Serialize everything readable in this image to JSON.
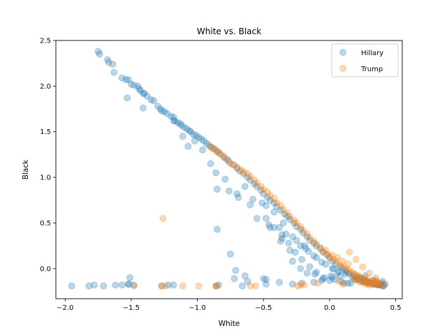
{
  "chart_data": {
    "type": "scatter",
    "title": "White vs. Black",
    "xlabel": "White",
    "ylabel": "Black",
    "xlim": [
      -2.07,
      0.55
    ],
    "ylim": [
      -0.33,
      2.5
    ],
    "x_ticks": [
      -2.0,
      -1.5,
      -1.0,
      -0.5,
      0.0,
      0.5
    ],
    "x_tick_labels": [
      "−2.0",
      "−1.5",
      "−1.0",
      "−0.5",
      "0.0",
      "0.5"
    ],
    "y_ticks": [
      0.0,
      0.5,
      1.0,
      1.5,
      2.0,
      2.5
    ],
    "y_tick_labels": [
      "0.0",
      "0.5",
      "1.0",
      "1.5",
      "2.0",
      "2.5"
    ],
    "grid": false,
    "legend_position": "top-right",
    "series": [
      {
        "name": "Hillary",
        "color": "#1f77b4",
        "alpha": 0.3,
        "x": [
          -1.75,
          -1.74,
          -1.68,
          -1.67,
          -1.64,
          -1.63,
          -1.57,
          -1.54,
          -1.52,
          -1.5,
          -1.48,
          -1.45,
          -1.44,
          -1.43,
          -1.41,
          -1.4,
          -1.38,
          -1.35,
          -1.33,
          -1.3,
          -1.28,
          -1.25,
          -1.23,
          -1.2,
          -1.18,
          -1.17,
          -1.15,
          -1.13,
          -1.12,
          -1.1,
          -1.08,
          -1.06,
          -1.05,
          -1.03,
          -1.01,
          -0.99,
          -0.97,
          -0.95,
          -0.93,
          -0.91,
          -0.89,
          -0.87,
          -0.85,
          -0.83,
          -0.8,
          -0.78,
          -0.76,
          -0.73,
          -0.7,
          -0.68,
          -0.65,
          -0.62,
          -0.6,
          -0.57,
          -0.55,
          -0.52,
          -0.5,
          -0.47,
          -0.45,
          -0.42,
          -0.4,
          -0.37,
          -0.34,
          -0.32,
          -0.3,
          -0.27,
          -0.25,
          -0.22,
          -0.2,
          -0.17,
          -0.15,
          -0.12,
          -0.1,
          -0.07,
          -0.05,
          -0.02,
          0.0,
          0.02,
          0.05,
          0.08,
          0.1,
          0.12,
          0.15,
          0.18,
          0.2,
          0.22,
          0.24,
          0.26,
          0.28,
          0.3,
          0.32,
          0.34,
          0.36,
          0.38,
          0.4,
          0.41,
          -1.53,
          -1.41,
          -1.27,
          -1.18,
          -1.11,
          -1.07,
          -1.02,
          -0.96,
          -0.9,
          -0.86,
          -0.79,
          -0.7,
          -0.64,
          -0.58,
          -0.48,
          -0.42,
          -0.38,
          -0.33,
          -0.25,
          -0.18,
          -0.12,
          -0.06,
          0.02,
          0.06,
          -0.85,
          -0.76,
          -0.69,
          -0.6,
          -0.55,
          -0.46,
          -0.36,
          -0.31,
          -0.26,
          -0.21,
          -0.15,
          -0.1,
          -0.04,
          0.01,
          0.09,
          0.14,
          -0.51,
          -0.48,
          -0.42,
          -0.35,
          -0.28,
          -0.22,
          -0.16,
          -0.1,
          -0.03,
          0.03,
          0.07,
          0.12,
          0.17,
          0.21,
          0.25,
          0.29,
          0.33,
          0.37,
          -0.85,
          -0.75,
          -0.71,
          -0.64,
          -0.5,
          -0.45,
          -0.36,
          -0.28,
          -0.22,
          -0.17,
          -0.11,
          -0.05,
          0.0,
          0.04,
          0.11,
          0.16,
          -1.95,
          -1.82,
          -1.78,
          -1.71,
          -1.62,
          -1.57,
          -1.52,
          -1.48,
          -1.27,
          -1.22,
          -1.18,
          -0.86,
          -0.84,
          -0.66,
          -0.48,
          -0.38,
          -0.28,
          -0.21,
          -0.12,
          -0.06,
          0.02,
          0.08,
          0.13,
          -1.51,
          -1.52,
          -0.72,
          -0.62,
          -0.48,
          -0.37,
          -0.3,
          -0.19,
          0.19,
          0.23,
          0.27,
          0.31,
          0.35,
          0.39,
          0.42,
          0.26,
          0.29,
          0.33,
          0.36,
          0.4
        ],
        "y": [
          2.38,
          2.35,
          2.29,
          2.26,
          2.24,
          2.15,
          2.09,
          2.07,
          2.07,
          2.02,
          2.01,
          2.0,
          1.97,
          1.95,
          1.92,
          1.92,
          1.89,
          1.85,
          1.84,
          1.78,
          1.75,
          1.72,
          1.7,
          1.67,
          1.66,
          1.62,
          1.6,
          1.59,
          1.57,
          1.55,
          1.53,
          1.51,
          1.5,
          1.47,
          1.46,
          1.44,
          1.42,
          1.4,
          1.37,
          1.35,
          1.33,
          1.31,
          1.28,
          1.26,
          1.22,
          1.2,
          1.17,
          1.14,
          1.1,
          1.07,
          1.04,
          1.0,
          0.97,
          0.93,
          0.9,
          0.86,
          0.82,
          0.78,
          0.75,
          0.72,
          0.68,
          0.64,
          0.6,
          0.57,
          0.54,
          0.5,
          0.46,
          0.43,
          0.39,
          0.35,
          0.31,
          0.28,
          0.25,
          0.22,
          0.18,
          0.15,
          0.12,
          0.08,
          0.05,
          0.02,
          0.0,
          -0.02,
          -0.05,
          -0.07,
          -0.09,
          -0.11,
          -0.13,
          -0.14,
          -0.15,
          -0.16,
          -0.17,
          -0.17,
          -0.18,
          -0.18,
          -0.19,
          -0.19,
          1.87,
          1.76,
          1.73,
          1.62,
          1.45,
          1.34,
          1.4,
          1.3,
          1.15,
          1.05,
          0.98,
          0.82,
          0.9,
          0.76,
          0.69,
          0.62,
          0.45,
          0.38,
          0.31,
          0.22,
          0.14,
          0.07,
          0.0,
          -0.05,
          0.87,
          0.85,
          0.78,
          0.7,
          0.55,
          0.48,
          0.37,
          0.28,
          0.18,
          0.1,
          0.02,
          -0.04,
          -0.1,
          -0.08,
          -0.14,
          -0.16,
          0.72,
          0.55,
          0.45,
          0.5,
          0.35,
          0.25,
          0.19,
          0.12,
          0.05,
          0.0,
          -0.03,
          -0.06,
          -0.09,
          -0.12,
          -0.14,
          -0.15,
          -0.17,
          -0.18,
          0.43,
          0.16,
          -0.02,
          -0.08,
          -0.11,
          0.45,
          0.33,
          0.08,
          0.0,
          -0.05,
          -0.06,
          -0.11,
          -0.13,
          -0.12,
          -0.16,
          -0.16,
          -0.19,
          -0.19,
          -0.18,
          -0.19,
          -0.18,
          -0.18,
          -0.17,
          -0.18,
          -0.19,
          -0.18,
          -0.18,
          -0.19,
          -0.18,
          -0.19,
          -0.17,
          -0.15,
          -0.17,
          -0.16,
          -0.15,
          -0.13,
          -0.1,
          -0.08,
          -0.04,
          -0.1,
          -0.17,
          -0.11,
          -0.14,
          -0.12,
          0.3,
          0.2,
          0.25,
          -0.12,
          -0.1,
          -0.08,
          -0.15,
          -0.13,
          -0.16,
          -0.17,
          -0.11,
          -0.15,
          -0.13,
          -0.16,
          -0.14
        ]
      },
      {
        "name": "Trump",
        "color": "#ff7f0e",
        "alpha": 0.3,
        "x": [
          -0.9,
          -0.88,
          -0.86,
          -0.84,
          -0.82,
          -0.8,
          -0.77,
          -0.75,
          -0.72,
          -0.7,
          -0.67,
          -0.65,
          -0.62,
          -0.6,
          -0.57,
          -0.55,
          -0.52,
          -0.5,
          -0.47,
          -0.45,
          -0.42,
          -0.4,
          -0.37,
          -0.35,
          -0.32,
          -0.3,
          -0.27,
          -0.25,
          -0.22,
          -0.2,
          -0.17,
          -0.15,
          -0.12,
          -0.1,
          -0.07,
          -0.05,
          -0.02,
          0.0,
          0.03,
          0.05,
          0.08,
          0.1,
          0.13,
          0.15,
          0.17,
          0.19,
          0.21,
          0.23,
          0.25,
          0.27,
          0.29,
          0.31,
          0.33,
          0.35,
          0.37,
          0.39,
          0.41,
          0.18,
          0.2,
          0.22,
          0.24,
          0.26,
          0.28,
          0.3,
          0.32,
          0.34,
          0.36,
          0.15,
          0.2,
          0.25,
          0.3,
          0.35,
          0.22,
          0.27,
          0.31,
          0.36,
          -0.03,
          0.02,
          0.06,
          0.1,
          0.14,
          -1.26,
          -1.48,
          -1.27,
          -1.24,
          -1.11,
          -0.99,
          -0.86,
          -0.85,
          -0.6,
          -0.56,
          -0.24,
          -0.22,
          -0.19,
          -0.09,
          0.07,
          0.1
        ],
        "y": [
          1.33,
          1.31,
          1.3,
          1.28,
          1.25,
          1.23,
          1.19,
          1.15,
          1.13,
          1.11,
          1.08,
          1.06,
          1.04,
          1.01,
          0.97,
          0.94,
          0.9,
          0.87,
          0.84,
          0.8,
          0.77,
          0.72,
          0.69,
          0.65,
          0.61,
          0.57,
          0.53,
          0.5,
          0.46,
          0.42,
          0.38,
          0.34,
          0.3,
          0.27,
          0.23,
          0.19,
          0.16,
          0.13,
          0.1,
          0.08,
          0.04,
          0.02,
          0.0,
          -0.02,
          -0.04,
          -0.06,
          -0.08,
          -0.1,
          -0.11,
          -0.13,
          -0.14,
          -0.15,
          -0.16,
          -0.17,
          -0.17,
          -0.18,
          -0.18,
          -0.1,
          -0.12,
          -0.14,
          -0.15,
          -0.16,
          -0.17,
          -0.18,
          -0.16,
          -0.15,
          -0.17,
          0.18,
          0.1,
          0.02,
          -0.05,
          -0.1,
          -0.08,
          -0.12,
          -0.13,
          -0.15,
          0.2,
          0.15,
          0.12,
          0.08,
          0.05,
          0.55,
          -0.19,
          -0.19,
          -0.19,
          -0.19,
          -0.19,
          -0.19,
          -0.19,
          -0.19,
          -0.19,
          -0.19,
          -0.18,
          -0.18,
          -0.16,
          -0.14,
          -0.17
        ]
      }
    ]
  }
}
